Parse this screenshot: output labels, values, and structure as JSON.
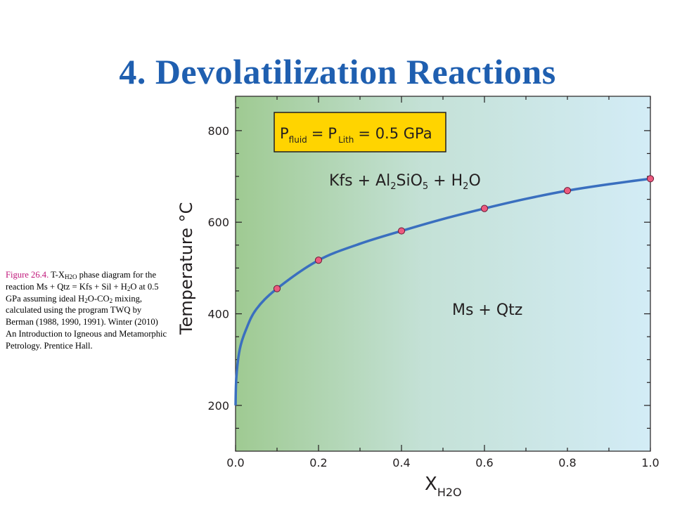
{
  "slide": {
    "title": "4. Devolatilization Reactions"
  },
  "caption": {
    "figure_label": "Figure 26.4.",
    "t": " T-X",
    "sub1": "H2O",
    "a": " phase diagram for the reaction Ms + Qtz = Kfs + Sil + H",
    "sub2": "2",
    "b": "O at 0.5 GPa assuming ideal H",
    "sub3": "2",
    "c": "O-CO",
    "sub4": "2",
    "d": " mixing, calculated using the program TWQ by Berman (1988, 1990, 1991). Winter (2010) An Introduction to Igneous and Metamorphic Petrology. Prentice Hall."
  },
  "chart_data": {
    "type": "line",
    "title": "",
    "xlabel": "X",
    "xlabel_sub": "H2O",
    "ylabel": "Temperature °C",
    "xlim": [
      0.0,
      1.0
    ],
    "ylim": [
      100,
      875
    ],
    "x_ticks": [
      "0.0",
      "0.2",
      "0.4",
      "0.6",
      "0.8",
      "1.0"
    ],
    "x_tick_values": [
      0.0,
      0.2,
      0.4,
      0.6,
      0.8,
      1.0
    ],
    "y_ticks": [
      "200",
      "400",
      "600",
      "800"
    ],
    "y_tick_values": [
      200,
      400,
      600,
      800
    ],
    "series": [
      {
        "name": "",
        "curve": [
          {
            "x": 0.0,
            "y": 200
          },
          {
            "x": 0.002,
            "y": 262
          },
          {
            "x": 0.01,
            "y": 322
          },
          {
            "x": 0.025,
            "y": 365
          },
          {
            "x": 0.05,
            "y": 410
          },
          {
            "x": 0.1,
            "y": 455
          },
          {
            "x": 0.2,
            "y": 517
          },
          {
            "x": 0.3,
            "y": 553
          },
          {
            "x": 0.4,
            "y": 581
          },
          {
            "x": 0.5,
            "y": 607
          },
          {
            "x": 0.6,
            "y": 630
          },
          {
            "x": 0.7,
            "y": 651
          },
          {
            "x": 0.8,
            "y": 669
          },
          {
            "x": 0.9,
            "y": 683
          },
          {
            "x": 1.0,
            "y": 695
          }
        ],
        "points": [
          {
            "x": 0.1,
            "y": 455
          },
          {
            "x": 0.2,
            "y": 517
          },
          {
            "x": 0.4,
            "y": 581
          },
          {
            "x": 0.6,
            "y": 630
          },
          {
            "x": 0.8,
            "y": 669
          },
          {
            "x": 1.0,
            "y": 695
          }
        ]
      }
    ],
    "pressure_box": {
      "p": "P",
      "p_fluid_sub": "fluid",
      "eq": "=",
      "p_lith_sub": "Lith",
      "value": "= 0.5 GPa"
    },
    "field_labels": {
      "upper": {
        "a": "Kfs + Al",
        "s1": "2",
        "b": "SiO",
        "s2": "5",
        "c": " + H",
        "s3": "2",
        "d": "O"
      },
      "lower": "Ms + Qtz"
    },
    "grid": false,
    "colors": {
      "curve": "#3a6fbf",
      "point_fill": "#ec5a7e",
      "point_stroke": "#6a1a36",
      "bg_left": "#9fca92",
      "bg_mid": "#c4e1d6",
      "bg_right": "#d3ecf6",
      "pressure_box": "#ffd400",
      "title": "#1f5fb0",
      "figure_label": "#c0177a"
    }
  }
}
